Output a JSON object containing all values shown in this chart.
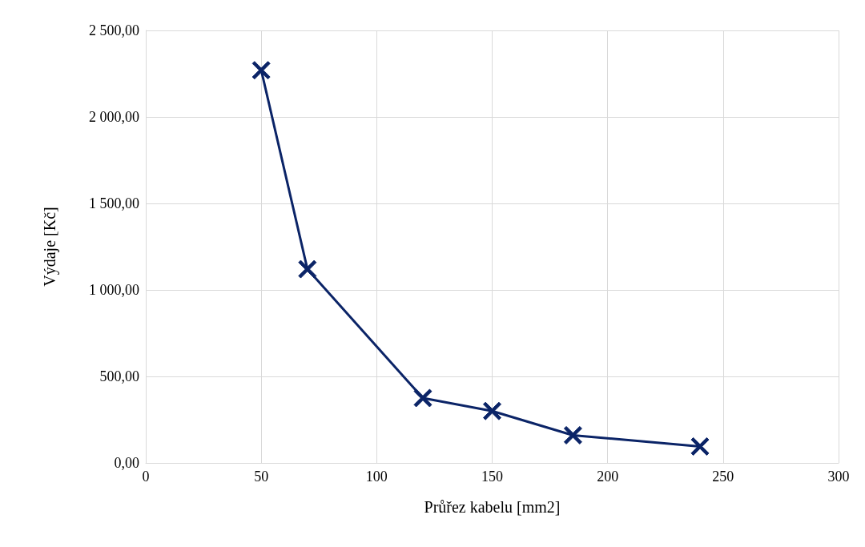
{
  "chart_data": {
    "type": "line",
    "xlabel": "Průřez kabelu [mm2]",
    "ylabel": "Výdaje [Kč]",
    "x": [
      50,
      70,
      120,
      150,
      185,
      240
    ],
    "series": [
      {
        "color": "#0b2467",
        "values": [
          2270,
          1120,
          375,
          300,
          160,
          95
        ]
      }
    ],
    "xlim": [
      0,
      300
    ],
    "xticks": [
      0,
      50,
      100,
      150,
      200,
      250,
      300
    ],
    "ylim": [
      0,
      2500
    ],
    "yticks": [
      {
        "value": 0,
        "label": "0,00"
      },
      {
        "value": 500,
        "label": "500,00"
      },
      {
        "value": 1000,
        "label": "1 000,00"
      },
      {
        "value": 1500,
        "label": "1 500,00"
      },
      {
        "value": 2000,
        "label": "2 000,00"
      },
      {
        "value": 2500,
        "label": "2 500,00"
      }
    ],
    "grid": true,
    "marker": "cross",
    "line_style": "solid"
  }
}
